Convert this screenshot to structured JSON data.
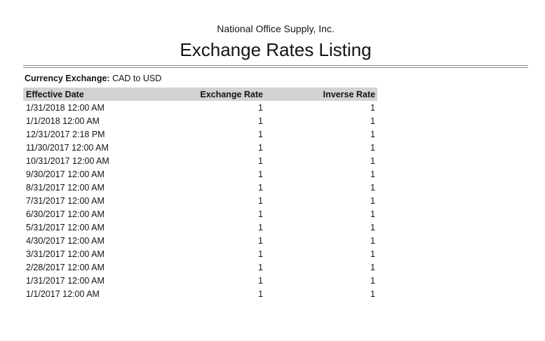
{
  "report": {
    "company": "National Office Supply, Inc.",
    "title": "Exchange Rates Listing",
    "filter_label": "Currency Exchange:",
    "filter_value": "CAD to USD"
  },
  "table": {
    "columns": [
      {
        "label": "Effective Date",
        "align": "left"
      },
      {
        "label": "Exchange Rate",
        "align": "right"
      },
      {
        "label": "Inverse Rate",
        "align": "right"
      }
    ],
    "rows": [
      {
        "effective_date": "1/31/2018 12:00 AM",
        "exchange_rate": "1",
        "inverse_rate": "1"
      },
      {
        "effective_date": "1/1/2018 12:00 AM",
        "exchange_rate": "1",
        "inverse_rate": "1"
      },
      {
        "effective_date": "12/31/2017 2:18 PM",
        "exchange_rate": "1",
        "inverse_rate": "1"
      },
      {
        "effective_date": "11/30/2017 12:00 AM",
        "exchange_rate": "1",
        "inverse_rate": "1"
      },
      {
        "effective_date": "10/31/2017 12:00 AM",
        "exchange_rate": "1",
        "inverse_rate": "1"
      },
      {
        "effective_date": "9/30/2017 12:00 AM",
        "exchange_rate": "1",
        "inverse_rate": "1"
      },
      {
        "effective_date": "8/31/2017 12:00 AM",
        "exchange_rate": "1",
        "inverse_rate": "1"
      },
      {
        "effective_date": "7/31/2017 12:00 AM",
        "exchange_rate": "1",
        "inverse_rate": "1"
      },
      {
        "effective_date": "6/30/2017 12:00 AM",
        "exchange_rate": "1",
        "inverse_rate": "1"
      },
      {
        "effective_date": "5/31/2017 12:00 AM",
        "exchange_rate": "1",
        "inverse_rate": "1"
      },
      {
        "effective_date": "4/30/2017 12:00 AM",
        "exchange_rate": "1",
        "inverse_rate": "1"
      },
      {
        "effective_date": "3/31/2017 12:00 AM",
        "exchange_rate": "1",
        "inverse_rate": "1"
      },
      {
        "effective_date": "2/28/2017 12:00 AM",
        "exchange_rate": "1",
        "inverse_rate": "1"
      },
      {
        "effective_date": "1/31/2017 12:00 AM",
        "exchange_rate": "1",
        "inverse_rate": "1"
      },
      {
        "effective_date": "1/1/2017 12:00 AM",
        "exchange_rate": "1",
        "inverse_rate": "1"
      }
    ]
  },
  "colors": {
    "header_row_bg": "#d3d3d3",
    "divider": "#8e8e8e",
    "text": "#141414"
  }
}
